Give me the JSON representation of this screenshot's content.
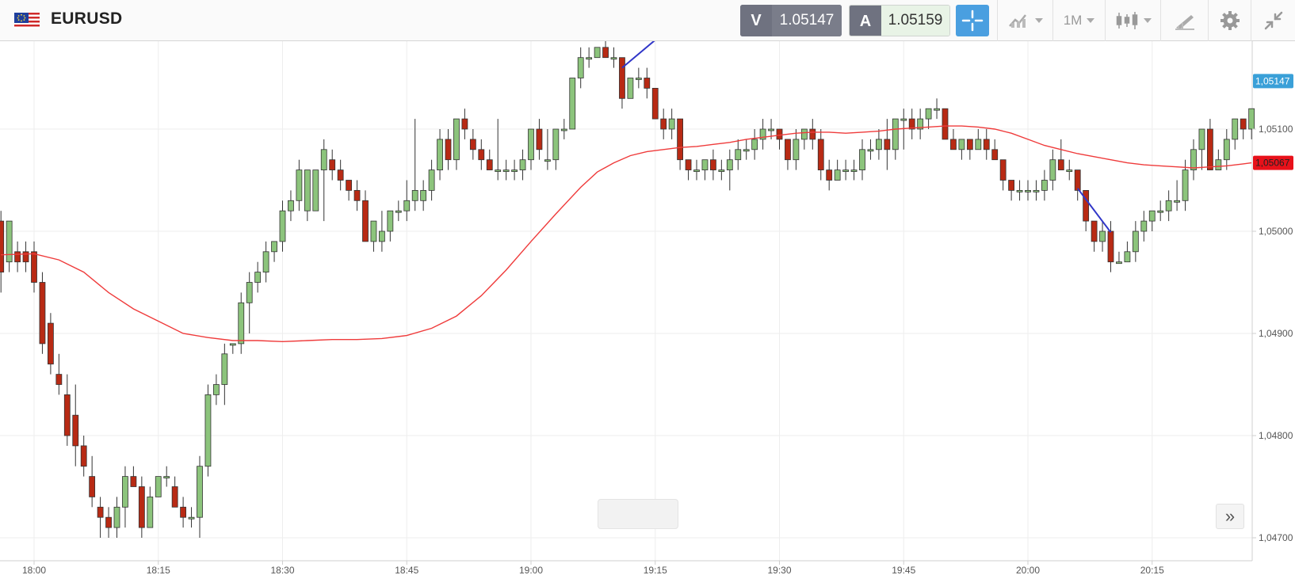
{
  "header": {
    "symbol": "EURUSD",
    "sell_letter": "V",
    "sell_price": "1.05147",
    "buy_letter": "A",
    "buy_price": "1.05159",
    "interval": "1M"
  },
  "icons": [
    "eu-us-flag-icon",
    "crosshair-icon",
    "chart-type-icon",
    "candlestick-icon",
    "draw-tools-icon",
    "gear-icon",
    "collapse-icon",
    "double-chevron-right-icon"
  ],
  "colors": {
    "up": "#8cc47c",
    "down": "#b82a14",
    "ma": "#ef3b3b",
    "trendline": "#3036c8",
    "bid_tag": "#3aa0d8",
    "ask_tag": "#e8111a",
    "accent": "#4a9fe0"
  },
  "chart_data": {
    "type": "candlestick",
    "title": "",
    "xlabel": "",
    "ylabel": "",
    "ylim": [
      1.0469,
      1.0519
    ],
    "y_ticks": [
      "1,04700",
      "1,04800",
      "1,04900",
      "1,05000",
      "1,05100"
    ],
    "x_ticks": [
      "18:00",
      "18:15",
      "18:30",
      "18:45",
      "19:00",
      "19:15",
      "19:30",
      "19:45",
      "20:00",
      "20:15"
    ],
    "x_tick_minutes": [
      0,
      15,
      30,
      45,
      60,
      75,
      90,
      105,
      120,
      135
    ],
    "x_range_minutes": [
      -4,
      147
    ],
    "price_tags": [
      {
        "label": "1,05147",
        "value": 1.05147,
        "kind": "bid"
      },
      {
        "label": "1,05067",
        "value": 1.05067,
        "kind": "ask"
      }
    ],
    "candles": [
      [
        -4,
        1.0501,
        1.0502,
        1.0494,
        1.0496
      ],
      [
        -3,
        1.0497,
        1.0501,
        1.0496,
        1.0501
      ],
      [
        -2,
        1.0498,
        1.0499,
        1.0496,
        1.0497
      ],
      [
        -1,
        1.0498,
        1.0499,
        1.0496,
        1.0497
      ],
      [
        0,
        1.0498,
        1.0499,
        1.0494,
        1.0495
      ],
      [
        1,
        1.0495,
        1.0496,
        1.0488,
        1.0489
      ],
      [
        2,
        1.0491,
        1.0492,
        1.0486,
        1.0487
      ],
      [
        3,
        1.0486,
        1.0488,
        1.0484,
        1.0485
      ],
      [
        4,
        1.0484,
        1.0486,
        1.0479,
        1.048
      ],
      [
        5,
        1.0482,
        1.0485,
        1.0477,
        1.0479
      ],
      [
        6,
        1.0479,
        1.048,
        1.0476,
        1.0477
      ],
      [
        7,
        1.0476,
        1.0478,
        1.0473,
        1.0474
      ],
      [
        8,
        1.0473,
        1.0474,
        1.047,
        1.0472
      ],
      [
        9,
        1.0472,
        1.0473,
        1.047,
        1.0471
      ],
      [
        10,
        1.0471,
        1.0474,
        1.047,
        1.0473
      ],
      [
        11,
        1.0473,
        1.0477,
        1.0471,
        1.0476
      ],
      [
        12,
        1.0476,
        1.0477,
        1.0475,
        1.0475
      ],
      [
        13,
        1.0475,
        1.0476,
        1.047,
        1.0471
      ],
      [
        14,
        1.0471,
        1.0475,
        1.0471,
        1.0474
      ],
      [
        15,
        1.0474,
        1.0476,
        1.0474,
        1.0476
      ],
      [
        16,
        1.0476,
        1.0477,
        1.0475,
        1.0476
      ],
      [
        17,
        1.0475,
        1.0476,
        1.0473,
        1.0473
      ],
      [
        18,
        1.0473,
        1.0474,
        1.0471,
        1.0472
      ],
      [
        19,
        1.0472,
        1.0473,
        1.0471,
        1.0472
      ],
      [
        20,
        1.0472,
        1.0478,
        1.047,
        1.0477
      ],
      [
        21,
        1.0477,
        1.0485,
        1.0476,
        1.0484
      ],
      [
        22,
        1.0484,
        1.0486,
        1.0483,
        1.0485
      ],
      [
        23,
        1.0485,
        1.0489,
        1.0483,
        1.0488
      ],
      [
        24,
        1.0489,
        1.0489,
        1.0488,
        1.0489
      ],
      [
        25,
        1.0489,
        1.0494,
        1.0488,
        1.0493
      ],
      [
        26,
        1.0493,
        1.0496,
        1.049,
        1.0495
      ],
      [
        27,
        1.0495,
        1.0497,
        1.0494,
        1.0496
      ],
      [
        28,
        1.0496,
        1.0499,
        1.0495,
        1.0498
      ],
      [
        29,
        1.0498,
        1.0499,
        1.0497,
        1.0499
      ],
      [
        30,
        1.0499,
        1.0503,
        1.0498,
        1.0502
      ],
      [
        31,
        1.0502,
        1.0504,
        1.0501,
        1.0503
      ],
      [
        32,
        1.0503,
        1.0507,
        1.0502,
        1.0506
      ],
      [
        33,
        1.0502,
        1.0506,
        1.0501,
        1.0506
      ],
      [
        34,
        1.0502,
        1.0506,
        1.0502,
        1.0506
      ],
      [
        35,
        1.0506,
        1.0509,
        1.0501,
        1.0508
      ],
      [
        36,
        1.0507,
        1.0508,
        1.0505,
        1.0506
      ],
      [
        37,
        1.0506,
        1.0507,
        1.0504,
        1.0505
      ],
      [
        38,
        1.0505,
        1.0505,
        1.0503,
        1.0504
      ],
      [
        39,
        1.0504,
        1.0505,
        1.0502,
        1.0503
      ],
      [
        40,
        1.0503,
        1.0504,
        1.0499,
        1.0499
      ],
      [
        41,
        1.0499,
        1.0501,
        1.0498,
        1.0501
      ],
      [
        42,
        1.0499,
        1.0502,
        1.0498,
        1.05
      ],
      [
        43,
        1.05,
        1.0502,
        1.0499,
        1.0502
      ],
      [
        44,
        1.0502,
        1.0503,
        1.0501,
        1.0502
      ],
      [
        45,
        1.0502,
        1.0505,
        1.0501,
        1.0503
      ],
      [
        46,
        1.0503,
        1.0511,
        1.0502,
        1.0504
      ],
      [
        47,
        1.0503,
        1.0505,
        1.0502,
        1.0504
      ],
      [
        48,
        1.0504,
        1.0507,
        1.0503,
        1.0506
      ],
      [
        49,
        1.0506,
        1.051,
        1.0505,
        1.0509
      ],
      [
        50,
        1.0509,
        1.051,
        1.0506,
        1.0507
      ],
      [
        51,
        1.0507,
        1.0511,
        1.0506,
        1.0511
      ],
      [
        52,
        1.0511,
        1.0512,
        1.0509,
        1.051
      ],
      [
        53,
        1.0509,
        1.051,
        1.0507,
        1.0508
      ],
      [
        54,
        1.0508,
        1.0509,
        1.0506,
        1.0507
      ],
      [
        55,
        1.0507,
        1.0508,
        1.0506,
        1.0506
      ],
      [
        56,
        1.0506,
        1.0511,
        1.0505,
        1.0506
      ],
      [
        57,
        1.0506,
        1.0507,
        1.0505,
        1.0506
      ],
      [
        58,
        1.0506,
        1.0507,
        1.0505,
        1.0506
      ],
      [
        59,
        1.0506,
        1.0508,
        1.0505,
        1.0507
      ],
      [
        60,
        1.0507,
        1.051,
        1.0506,
        1.051
      ],
      [
        61,
        1.051,
        1.0511,
        1.0507,
        1.0508
      ],
      [
        62,
        1.0507,
        1.051,
        1.0506,
        1.0507
      ],
      [
        63,
        1.0507,
        1.051,
        1.0506,
        1.051
      ],
      [
        64,
        1.051,
        1.0511,
        1.0509,
        1.051
      ],
      [
        65,
        1.051,
        1.0515,
        1.051,
        1.0515
      ],
      [
        66,
        1.0515,
        1.0518,
        1.0514,
        1.0517
      ],
      [
        67,
        1.0517,
        1.0518,
        1.0516,
        1.0517
      ],
      [
        68,
        1.0517,
        1.0518,
        1.0517,
        1.0518
      ],
      [
        69,
        1.0518,
        1.0519,
        1.0517,
        1.0517
      ],
      [
        70,
        1.0517,
        1.0518,
        1.0516,
        1.0517
      ],
      [
        71,
        1.0517,
        1.0517,
        1.0512,
        1.0513
      ],
      [
        72,
        1.0513,
        1.0515,
        1.0513,
        1.0515
      ],
      [
        73,
        1.0515,
        1.0516,
        1.0514,
        1.0515
      ],
      [
        74,
        1.0515,
        1.0516,
        1.0513,
        1.0514
      ],
      [
        75,
        1.0514,
        1.0514,
        1.0511,
        1.0511
      ],
      [
        76,
        1.0511,
        1.0512,
        1.0509,
        1.051
      ],
      [
        77,
        1.051,
        1.0512,
        1.0509,
        1.0511
      ],
      [
        78,
        1.0511,
        1.0511,
        1.0506,
        1.0507
      ],
      [
        79,
        1.0507,
        1.0507,
        1.0505,
        1.0506
      ],
      [
        80,
        1.0506,
        1.0507,
        1.0505,
        1.0506
      ],
      [
        81,
        1.0506,
        1.0507,
        1.0505,
        1.0507
      ],
      [
        82,
        1.0507,
        1.0508,
        1.0505,
        1.0506
      ],
      [
        83,
        1.0506,
        1.0507,
        1.0505,
        1.0506
      ],
      [
        84,
        1.0506,
        1.0508,
        1.0504,
        1.0507
      ],
      [
        85,
        1.0507,
        1.0509,
        1.0506,
        1.0508
      ],
      [
        86,
        1.0508,
        1.0509,
        1.0507,
        1.0508
      ],
      [
        87,
        1.0508,
        1.051,
        1.0507,
        1.0509
      ],
      [
        88,
        1.0509,
        1.0511,
        1.0508,
        1.051
      ],
      [
        89,
        1.051,
        1.0511,
        1.0509,
        1.051
      ],
      [
        90,
        1.051,
        1.051,
        1.0508,
        1.0509
      ],
      [
        91,
        1.0509,
        1.0509,
        1.0506,
        1.0507
      ],
      [
        92,
        1.0507,
        1.051,
        1.0506,
        1.0509
      ],
      [
        93,
        1.0509,
        1.051,
        1.0508,
        1.051
      ],
      [
        94,
        1.051,
        1.0511,
        1.0508,
        1.0509
      ],
      [
        95,
        1.0509,
        1.051,
        1.0505,
        1.0506
      ],
      [
        96,
        1.0506,
        1.0507,
        1.0504,
        1.0505
      ],
      [
        97,
        1.0505,
        1.0507,
        1.0505,
        1.0506
      ],
      [
        98,
        1.0506,
        1.0507,
        1.0505,
        1.0506
      ],
      [
        99,
        1.0506,
        1.0507,
        1.0505,
        1.0506
      ],
      [
        100,
        1.0506,
        1.0509,
        1.0505,
        1.0508
      ],
      [
        101,
        1.0508,
        1.0509,
        1.0507,
        1.0508
      ],
      [
        102,
        1.0508,
        1.051,
        1.0507,
        1.0509
      ],
      [
        103,
        1.0509,
        1.0511,
        1.0506,
        1.0508
      ],
      [
        104,
        1.0508,
        1.0511,
        1.0507,
        1.0511
      ],
      [
        105,
        1.0511,
        1.0512,
        1.0508,
        1.0511
      ],
      [
        106,
        1.0511,
        1.0512,
        1.0509,
        1.051
      ],
      [
        107,
        1.051,
        1.0512,
        1.0509,
        1.0511
      ],
      [
        108,
        1.0511,
        1.0512,
        1.051,
        1.0512
      ],
      [
        109,
        1.0512,
        1.0513,
        1.0511,
        1.0512
      ],
      [
        110,
        1.0512,
        1.0512,
        1.0509,
        1.0509
      ],
      [
        111,
        1.0509,
        1.051,
        1.0508,
        1.0508
      ],
      [
        112,
        1.0508,
        1.0509,
        1.0507,
        1.0509
      ],
      [
        113,
        1.0509,
        1.0509,
        1.0507,
        1.0508
      ],
      [
        114,
        1.0508,
        1.051,
        1.0508,
        1.0509
      ],
      [
        115,
        1.0509,
        1.051,
        1.0507,
        1.0508
      ],
      [
        116,
        1.0508,
        1.0509,
        1.0507,
        1.0507
      ],
      [
        117,
        1.0507,
        1.0507,
        1.0504,
        1.0505
      ],
      [
        118,
        1.0505,
        1.0505,
        1.0503,
        1.0504
      ],
      [
        119,
        1.0504,
        1.0505,
        1.0503,
        1.0504
      ],
      [
        120,
        1.0504,
        1.0505,
        1.0503,
        1.0504
      ],
      [
        121,
        1.0504,
        1.0505,
        1.0503,
        1.0504
      ],
      [
        122,
        1.0504,
        1.0506,
        1.0503,
        1.0505
      ],
      [
        123,
        1.0505,
        1.0508,
        1.0504,
        1.0507
      ],
      [
        124,
        1.0507,
        1.0509,
        1.0506,
        1.0506
      ],
      [
        125,
        1.0506,
        1.0507,
        1.0505,
        1.0506
      ],
      [
        126,
        1.0506,
        1.0506,
        1.0503,
        1.0504
      ],
      [
        127,
        1.0504,
        1.0504,
        1.05,
        1.0501
      ],
      [
        128,
        1.0501,
        1.0501,
        1.0498,
        1.0499
      ],
      [
        129,
        1.0499,
        1.0501,
        1.0498,
        1.05
      ],
      [
        130,
        1.05,
        1.0501,
        1.0496,
        1.0497
      ],
      [
        131,
        1.0497,
        1.0498,
        1.0497,
        1.0497
      ],
      [
        132,
        1.0497,
        1.0499,
        1.0497,
        1.0498
      ],
      [
        133,
        1.0498,
        1.0501,
        1.0497,
        1.05
      ],
      [
        134,
        1.05,
        1.0502,
        1.0499,
        1.0501
      ],
      [
        135,
        1.0501,
        1.0502,
        1.05,
        1.0502
      ],
      [
        136,
        1.0502,
        1.0503,
        1.0501,
        1.0502
      ],
      [
        137,
        1.0502,
        1.0504,
        1.0501,
        1.0503
      ],
      [
        138,
        1.0503,
        1.0505,
        1.0502,
        1.0503
      ],
      [
        139,
        1.0503,
        1.0507,
        1.0502,
        1.0506
      ],
      [
        140,
        1.0506,
        1.0509,
        1.0505,
        1.0508
      ],
      [
        141,
        1.0508,
        1.051,
        1.0506,
        1.051
      ],
      [
        142,
        1.051,
        1.0511,
        1.0506,
        1.0506
      ],
      [
        143,
        1.0506,
        1.0508,
        1.0506,
        1.0507
      ],
      [
        144,
        1.0507,
        1.051,
        1.0506,
        1.0509
      ],
      [
        145,
        1.0509,
        1.0511,
        1.0508,
        1.0511
      ],
      [
        146,
        1.0511,
        1.0511,
        1.0509,
        1.051
      ],
      [
        147,
        1.051,
        1.0512,
        1.0509,
        1.0512
      ]
    ],
    "moving_average": [
      [
        -4,
        1.04977
      ],
      [
        0,
        1.04978
      ],
      [
        3,
        1.04972
      ],
      [
        6,
        1.0496
      ],
      [
        9,
        1.0494
      ],
      [
        12,
        1.04924
      ],
      [
        15,
        1.04912
      ],
      [
        18,
        1.049
      ],
      [
        21,
        1.04896
      ],
      [
        24,
        1.04893
      ],
      [
        27,
        1.04893
      ],
      [
        30,
        1.04892
      ],
      [
        33,
        1.04893
      ],
      [
        36,
        1.04894
      ],
      [
        39,
        1.04894
      ],
      [
        42,
        1.04895
      ],
      [
        45,
        1.04898
      ],
      [
        48,
        1.04905
      ],
      [
        51,
        1.04917
      ],
      [
        54,
        1.04937
      ],
      [
        57,
        1.04962
      ],
      [
        60,
        1.0499
      ],
      [
        63,
        1.05017
      ],
      [
        66,
        1.05043
      ],
      [
        68,
        1.05058
      ],
      [
        70,
        1.05067
      ],
      [
        72,
        1.05074
      ],
      [
        74,
        1.05078
      ],
      [
        76,
        1.0508
      ],
      [
        78,
        1.05082
      ],
      [
        80,
        1.05083
      ],
      [
        82,
        1.05085
      ],
      [
        84,
        1.05087
      ],
      [
        86,
        1.0509
      ],
      [
        88,
        1.05092
      ],
      [
        90,
        1.05094
      ],
      [
        92,
        1.05096
      ],
      [
        94,
        1.05097
      ],
      [
        96,
        1.05097
      ],
      [
        98,
        1.05096
      ],
      [
        100,
        1.05097
      ],
      [
        102,
        1.05098
      ],
      [
        104,
        1.051
      ],
      [
        106,
        1.05101
      ],
      [
        108,
        1.05102
      ],
      [
        110,
        1.05103
      ],
      [
        112,
        1.05103
      ],
      [
        114,
        1.05102
      ],
      [
        116,
        1.051
      ],
      [
        118,
        1.05096
      ],
      [
        120,
        1.0509
      ],
      [
        122,
        1.05084
      ],
      [
        124,
        1.0508
      ],
      [
        126,
        1.05076
      ],
      [
        128,
        1.05073
      ],
      [
        130,
        1.0507
      ],
      [
        132,
        1.05067
      ],
      [
        134,
        1.05065
      ],
      [
        136,
        1.05064
      ],
      [
        138,
        1.05063
      ],
      [
        140,
        1.05062
      ],
      [
        142,
        1.05063
      ],
      [
        144,
        1.05064
      ],
      [
        146,
        1.05066
      ],
      [
        147,
        1.05067
      ]
    ],
    "trendlines": [
      [
        [
          71,
          1.0516
        ],
        [
          76,
          1.05194
        ]
      ],
      [
        [
          126,
          1.05042
        ],
        [
          130,
          1.04999
        ]
      ]
    ]
  }
}
